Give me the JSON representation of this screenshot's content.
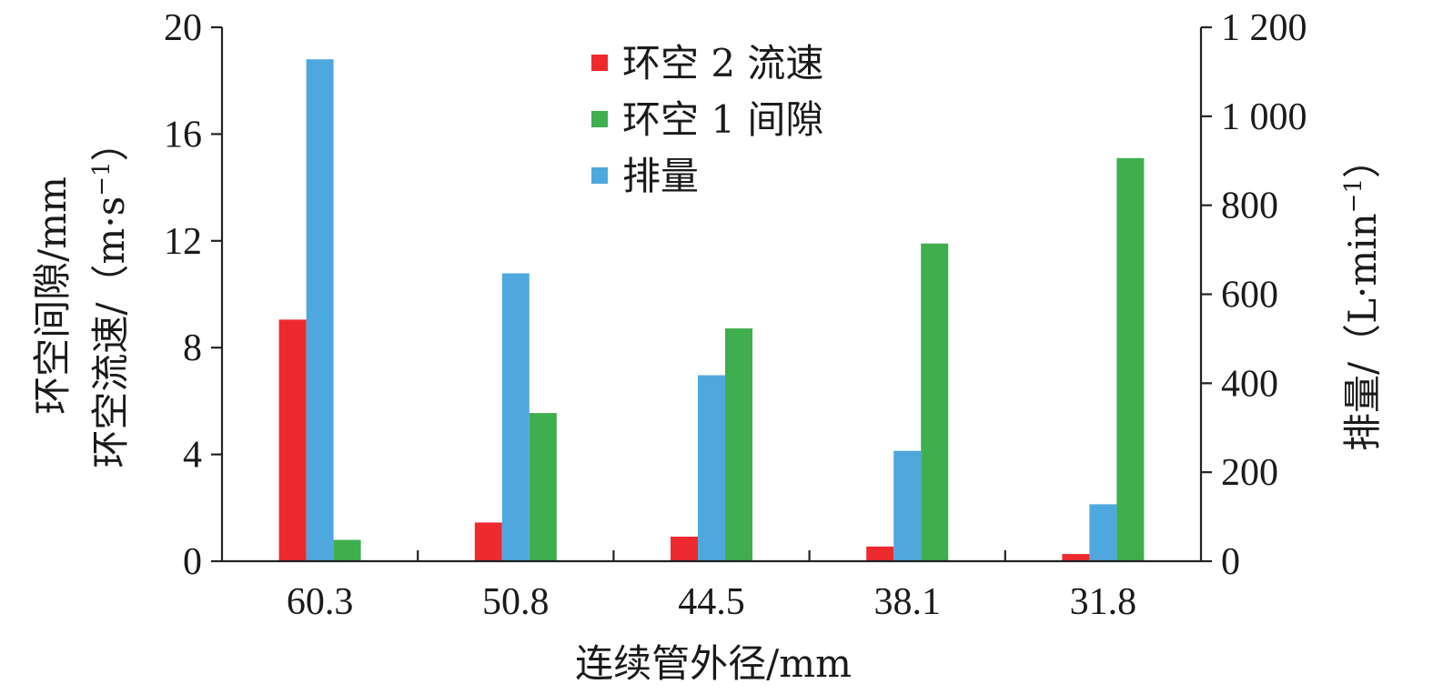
{
  "chart_data": {
    "type": "bar",
    "categories": [
      "60.3",
      "50.8",
      "44.5",
      "38.1",
      "31.8"
    ],
    "xlabel": "连续管外径/mm",
    "ylabel_left_line1": "环空间隙/mm",
    "ylabel_left_line2": "环空流速/（m·s",
    "ylabel_left_sup": "−1",
    "ylabel_left_close": "）",
    "ylabel_right": "排量/（L·min",
    "ylabel_right_sup": "−1",
    "ylabel_right_close": "）",
    "ylim_left": [
      0,
      20
    ],
    "yticks_left": [
      "0",
      "4",
      "8",
      "12",
      "16",
      "20"
    ],
    "ylim_right": [
      0,
      1200
    ],
    "yticks_right": [
      "0",
      "200",
      "400",
      "600",
      "800",
      "1 000",
      "1 200"
    ],
    "grid": false,
    "legend_position": "top-center",
    "series": [
      {
        "name": "环空 2 流速",
        "axis": "left",
        "color": "#ee2a2e",
        "values": [
          9.05,
          1.45,
          0.92,
          0.55,
          0.27
        ]
      },
      {
        "name": "排量",
        "axis": "right",
        "color": "#4ea8de",
        "values": [
          1128,
          647,
          418,
          248,
          128
        ]
      },
      {
        "name": "环空 1 间隙",
        "axis": "left",
        "color": "#3fae4f",
        "values": [
          0.8,
          5.55,
          8.72,
          11.9,
          15.1
        ]
      }
    ],
    "legend_order": [
      0,
      2,
      1
    ]
  }
}
